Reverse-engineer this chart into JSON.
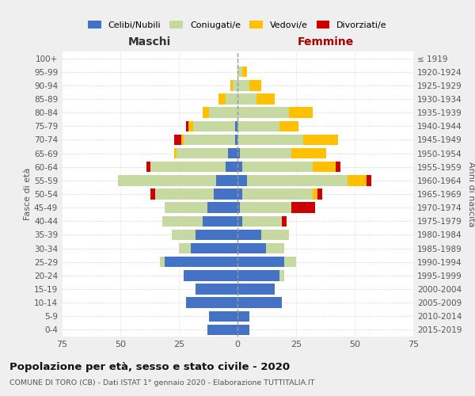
{
  "age_groups_bottom_to_top": [
    "0-4",
    "5-9",
    "10-14",
    "15-19",
    "20-24",
    "25-29",
    "30-34",
    "35-39",
    "40-44",
    "45-49",
    "50-54",
    "55-59",
    "60-64",
    "65-69",
    "70-74",
    "75-79",
    "80-84",
    "85-89",
    "90-94",
    "95-99",
    "100+"
  ],
  "birth_years_bottom_to_top": [
    "2015-2019",
    "2010-2014",
    "2005-2009",
    "2000-2004",
    "1995-1999",
    "1990-1994",
    "1985-1989",
    "1980-1984",
    "1975-1979",
    "1970-1974",
    "1965-1969",
    "1960-1964",
    "1955-1959",
    "1950-1954",
    "1945-1949",
    "1940-1944",
    "1935-1939",
    "1930-1934",
    "1925-1929",
    "1920-1924",
    "≤ 1919"
  ],
  "maschi_celibi": [
    13,
    12,
    22,
    18,
    23,
    31,
    20,
    18,
    15,
    13,
    10,
    9,
    5,
    4,
    1,
    1,
    0,
    0,
    0,
    0,
    0
  ],
  "maschi_coniugati": [
    0,
    0,
    0,
    0,
    0,
    2,
    5,
    10,
    17,
    18,
    25,
    42,
    32,
    22,
    22,
    18,
    12,
    5,
    2,
    0,
    0
  ],
  "maschi_vedovi": [
    0,
    0,
    0,
    0,
    0,
    0,
    0,
    0,
    0,
    0,
    0,
    0,
    0,
    1,
    1,
    2,
    3,
    3,
    1,
    0,
    0
  ],
  "maschi_divorziati": [
    0,
    0,
    0,
    0,
    0,
    0,
    0,
    0,
    0,
    0,
    2,
    0,
    2,
    0,
    3,
    1,
    0,
    0,
    0,
    0,
    0
  ],
  "femmine_nubili": [
    5,
    5,
    19,
    16,
    18,
    20,
    12,
    10,
    2,
    1,
    2,
    4,
    2,
    1,
    0,
    0,
    0,
    0,
    0,
    0,
    0
  ],
  "femmine_coniugate": [
    0,
    0,
    0,
    0,
    2,
    5,
    8,
    12,
    17,
    22,
    30,
    43,
    30,
    22,
    28,
    18,
    22,
    8,
    5,
    2,
    0
  ],
  "femmine_vedove": [
    0,
    0,
    0,
    0,
    0,
    0,
    0,
    0,
    0,
    0,
    2,
    8,
    10,
    15,
    15,
    8,
    10,
    8,
    5,
    2,
    0
  ],
  "femmine_divorziate": [
    0,
    0,
    0,
    0,
    0,
    0,
    0,
    0,
    2,
    10,
    2,
    2,
    2,
    0,
    0,
    0,
    0,
    0,
    0,
    0,
    0
  ],
  "color_celibi": "#4472c4",
  "color_coniugati": "#c5d9a0",
  "color_vedovi": "#ffc000",
  "color_divorziati": "#cc0000",
  "xlim": 75,
  "title": "Popolazione per età, sesso e stato civile - 2020",
  "subtitle": "COMUNE DI TORO (CB) - Dati ISTAT 1° gennaio 2020 - Elaborazione TUTTITALIA.IT",
  "ylabel_left": "Fasce di età",
  "ylabel_right": "Anni di nascita",
  "label_maschi": "Maschi",
  "label_femmine": "Femmine",
  "legend_labels": [
    "Celibi/Nubili",
    "Coniugati/e",
    "Vedovi/e",
    "Divorziati/e"
  ],
  "bg_color": "#efefef",
  "plot_bg": "#ffffff",
  "xticks": [
    -75,
    -50,
    -25,
    0,
    25,
    50,
    75
  ]
}
